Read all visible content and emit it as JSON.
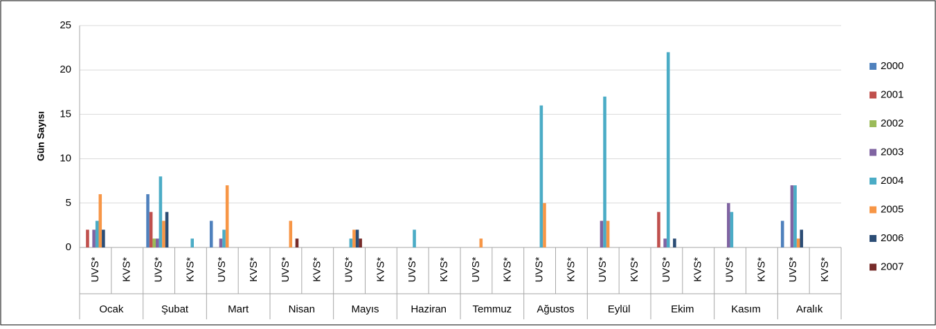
{
  "chart_data": {
    "type": "bar",
    "y_label": "Gün Sayısı",
    "categories": [
      "UVS*",
      "KVS*",
      "UVS*",
      "KVS*",
      "UVS*",
      "KVS*",
      "UVS*",
      "KVS*",
      "UVS*",
      "KVS*",
      "UVS*",
      "KVS*",
      "UVS*",
      "KVS*",
      "UVS*",
      "KVS*",
      "UVS*",
      "KVS*",
      "UVS*",
      "KVS*",
      "UVS*",
      "KVS*",
      "UVS*",
      "KVS*"
    ],
    "groups": [
      "Ocak",
      "Şubat",
      "Mart",
      "Nisan",
      "Mayıs",
      "Haziran",
      "Temmuz",
      "Ağustos",
      "Eylül",
      "Ekim",
      "Kasım",
      "Aralık"
    ],
    "series": [
      {
        "name": "2000",
        "color": "#4f81bd",
        "values": [
          0,
          0,
          6,
          0,
          3,
          0,
          0,
          0,
          0,
          0,
          0,
          0,
          0,
          0,
          0,
          0,
          0,
          0,
          0,
          0,
          0,
          0,
          3,
          0
        ]
      },
      {
        "name": "2001",
        "color": "#c0504d",
        "values": [
          2,
          0,
          4,
          0,
          0,
          0,
          0,
          0,
          0,
          0,
          0,
          0,
          0,
          0,
          0,
          0,
          0,
          0,
          4,
          0,
          0,
          0,
          0,
          0
        ]
      },
      {
        "name": "2002",
        "color": "#9bbb59",
        "values": [
          0,
          0,
          1,
          0,
          0,
          0,
          0,
          0,
          0,
          0,
          0,
          0,
          0,
          0,
          0,
          0,
          0,
          0,
          0,
          0,
          0,
          0,
          0,
          0
        ]
      },
      {
        "name": "2003",
        "color": "#8064a2",
        "values": [
          2,
          0,
          1,
          0,
          1,
          0,
          0,
          0,
          0,
          0,
          0,
          0,
          0,
          0,
          0,
          0,
          3,
          0,
          1,
          0,
          5,
          0,
          7,
          0
        ]
      },
      {
        "name": "2004",
        "color": "#4bacc6",
        "values": [
          3,
          0,
          8,
          1,
          2,
          0,
          0,
          0,
          1,
          0,
          2,
          0,
          0,
          0,
          16,
          0,
          17,
          0,
          22,
          0,
          4,
          0,
          7,
          0
        ]
      },
      {
        "name": "2005",
        "color": "#f79646",
        "values": [
          6,
          0,
          3,
          0,
          7,
          0,
          3,
          0,
          2,
          0,
          0,
          0,
          1,
          0,
          5,
          0,
          3,
          0,
          0,
          0,
          0,
          0,
          1,
          0
        ]
      },
      {
        "name": "2006",
        "color": "#2c4d75",
        "values": [
          2,
          0,
          4,
          0,
          0,
          0,
          0,
          0,
          2,
          0,
          0,
          0,
          0,
          0,
          0,
          0,
          0,
          0,
          1,
          0,
          0,
          0,
          2,
          0
        ]
      },
      {
        "name": "2007",
        "color": "#772c2a",
        "values": [
          0,
          0,
          0,
          0,
          0,
          0,
          1,
          0,
          1,
          0,
          0,
          0,
          0,
          0,
          0,
          0,
          0,
          0,
          0,
          0,
          0,
          0,
          0,
          0
        ]
      }
    ],
    "ylim": [
      0,
      25
    ],
    "yticks": [
      0,
      5,
      10,
      15,
      20,
      25
    ],
    "grid": true,
    "legend": "right"
  }
}
